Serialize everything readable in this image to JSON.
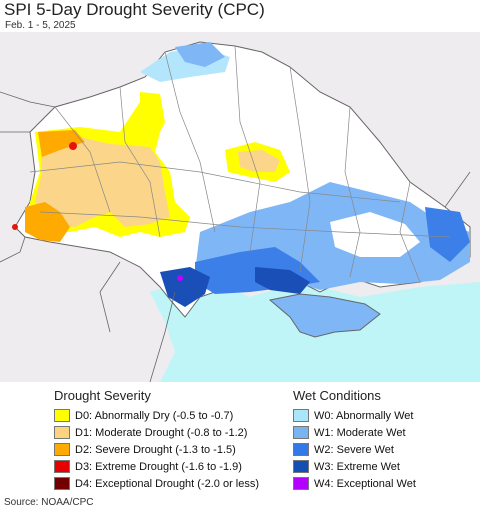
{
  "header": {
    "title": "SPI 5-Day Drought Severity (CPC)",
    "subtitle": "Feb. 1 - 5, 2025"
  },
  "map": {
    "colors": {
      "land": "#ffffff",
      "outside": "#eeecee",
      "sea": "#bff5f7",
      "border": "#7a7a7a",
      "d0": "#ffff00",
      "d1": "#fbd68a",
      "d2": "#ffaa00",
      "d3": "#e6130f",
      "w0": "#b3e5fc",
      "w1": "#7fb6f5",
      "w2": "#3c7fe8",
      "w3": "#1a4fb8",
      "w4": "#c000ff"
    }
  },
  "legend": {
    "drought": {
      "title": "Drought Severity",
      "items": [
        {
          "label": "D0: Abnormally Dry (-0.5 to -0.7)",
          "color": "#ffff00"
        },
        {
          "label": "D1: Moderate Drought (-0.8 to -1.2)",
          "color": "#fcd37f"
        },
        {
          "label": "D2: Severe Drought (-1.3 to -1.5)",
          "color": "#ffaa00"
        },
        {
          "label": "D3: Extreme Drought (-1.6 to -1.9)",
          "color": "#e60000"
        },
        {
          "label": "D4: Exceptional Drought (-2.0 or less)",
          "color": "#730000"
        }
      ]
    },
    "wet": {
      "title": "Wet Conditions",
      "items": [
        {
          "label": "W0: Abnormally Wet",
          "color": "#aae6fa"
        },
        {
          "label": "W1: Moderate Wet",
          "color": "#78b4f0"
        },
        {
          "label": "W2: Severe Wet",
          "color": "#3278e6"
        },
        {
          "label": "W3: Extreme Wet",
          "color": "#1450b4"
        },
        {
          "label": "W4: Exceptional Wet",
          "color": "#b400ff"
        }
      ]
    }
  },
  "footer": {
    "source": "Source: NOAA/CPC"
  }
}
